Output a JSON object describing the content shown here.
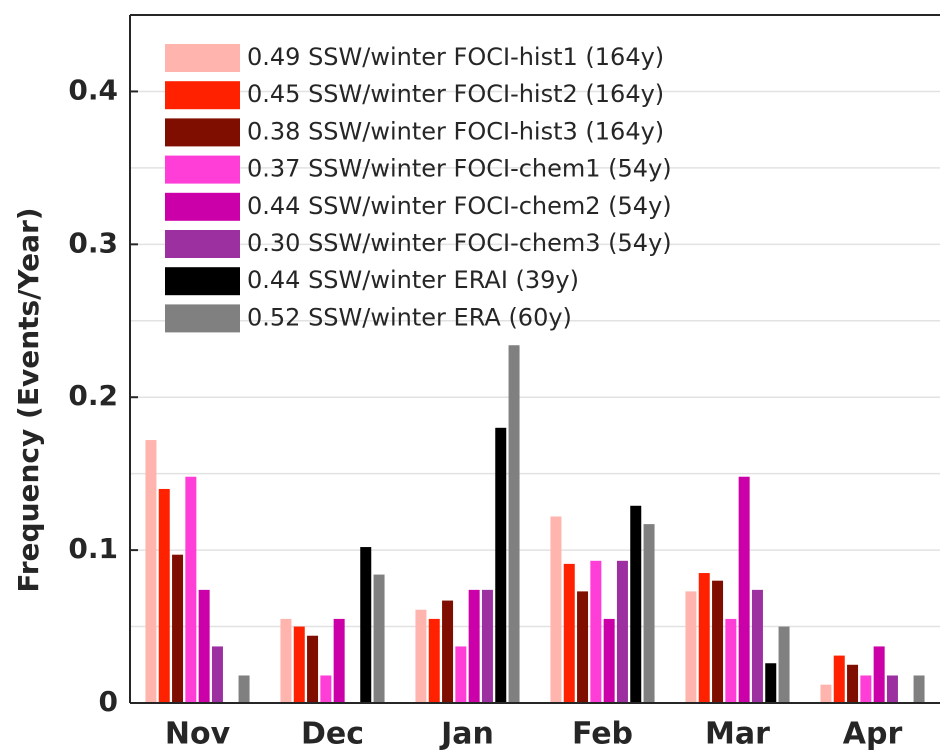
{
  "chart_data": {
    "type": "bar",
    "y_label": "Frequency (Events/Year)",
    "categories": [
      "Nov",
      "Dec",
      "Jan",
      "Feb",
      "Mar",
      "Apr"
    ],
    "series": [
      {
        "name": "0.49 SSW/winter FOCI-hist1 (164y)",
        "color": "#ffb5ae",
        "values": [
          0.172,
          0.055,
          0.061,
          0.122,
          0.073,
          0.012
        ]
      },
      {
        "name": "0.45 SSW/winter FOCI-hist2 (164y)",
        "color": "#ff2100",
        "values": [
          0.14,
          0.05,
          0.055,
          0.091,
          0.085,
          0.031
        ]
      },
      {
        "name": "0.38 SSW/winter FOCI-hist3 (164y)",
        "color": "#800e00",
        "values": [
          0.097,
          0.044,
          0.067,
          0.073,
          0.08,
          0.025
        ]
      },
      {
        "name": "0.37 SSW/winter FOCI-chem1 (54y)",
        "color": "#ff3ed8",
        "values": [
          0.148,
          0.018,
          0.037,
          0.093,
          0.055,
          0.018
        ]
      },
      {
        "name": "0.44 SSW/winter FOCI-chem2 (54y)",
        "color": "#cc00a8",
        "values": [
          0.074,
          0.055,
          0.074,
          0.055,
          0.148,
          0.037
        ]
      },
      {
        "name": "0.30 SSW/winter FOCI-chem3 (54y)",
        "color": "#9c30a0",
        "values": [
          0.037,
          0,
          0.074,
          0.093,
          0.074,
          0.018
        ]
      },
      {
        "name": "0.44 SSW/winter ERAI (39y)",
        "color": "#000000",
        "values": [
          0,
          0.102,
          0.18,
          0.129,
          0.026,
          0
        ]
      },
      {
        "name": "0.52 SSW/winter ERA (60y)",
        "color": "#808080",
        "values": [
          0.018,
          0.084,
          0.234,
          0.117,
          0.05,
          0.018
        ]
      }
    ],
    "ylim": [
      0,
      0.45
    ],
    "yticks": [
      0,
      0.1,
      0.2,
      0.3,
      0.4
    ],
    "yminorticks": [
      0.05,
      0.15,
      0.25,
      0.35
    ],
    "grid": true,
    "legend": "upper left"
  }
}
